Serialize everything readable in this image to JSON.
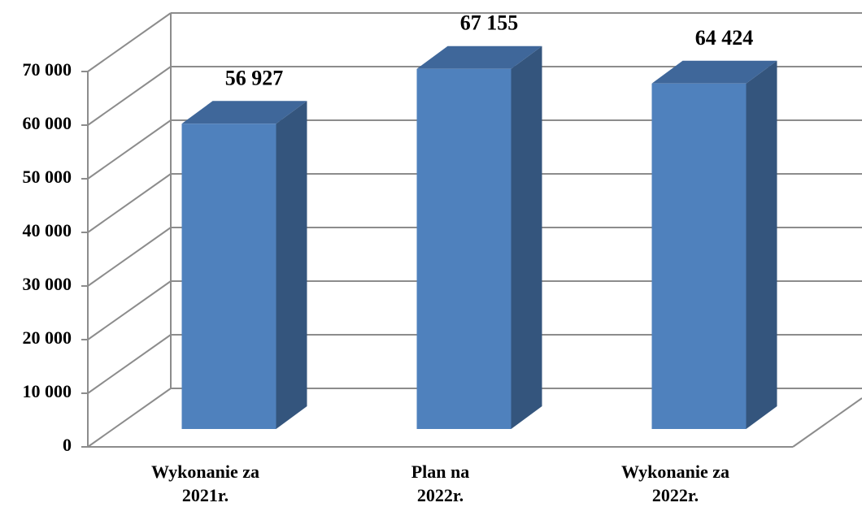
{
  "chart_data": {
    "type": "bar3d",
    "categories": [
      [
        "Wykonanie za",
        "2021r."
      ],
      [
        "Plan na",
        "2022r."
      ],
      [
        "Wykonanie za",
        "2022r."
      ]
    ],
    "values": [
      56927,
      67155,
      64424
    ],
    "value_labels": [
      "56 927",
      "67 155",
      "64 424"
    ],
    "color": "#4f81bd",
    "ylim": [
      0,
      70000
    ],
    "yticks": [
      0,
      {
        "value": 10000,
        "label": "10 000"
      },
      {
        "value": 20000,
        "label": "20 000"
      },
      {
        "value": 30000,
        "label": "30 000"
      },
      {
        "value": 40000,
        "label": "40 000"
      },
      {
        "value": 50000,
        "label": "50 000"
      },
      {
        "value": 60000,
        "label": "60 000"
      },
      {
        "value": 70000,
        "label": "70 000"
      }
    ],
    "grid": true
  }
}
